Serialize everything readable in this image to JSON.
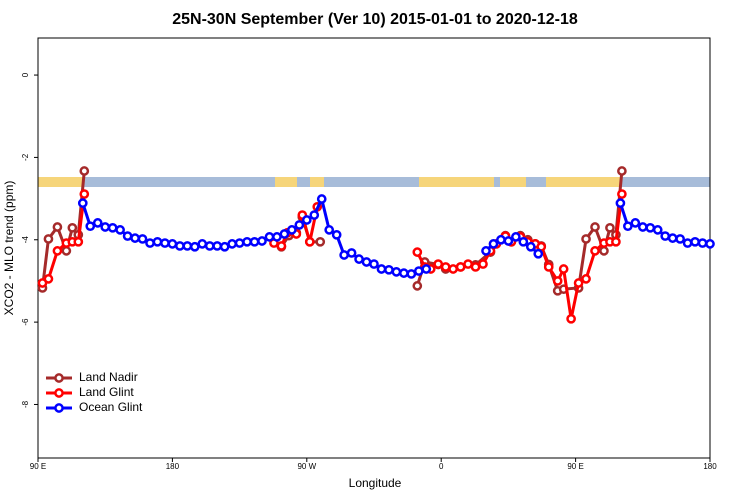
{
  "chart_data": {
    "type": "line",
    "title": "25N-30N September (Ver 10)   2015-01-01 to 2020-12-18",
    "x_label": "Longitude",
    "y_label": "XCO2 - MLO trend (ppm)",
    "xlim": [
      90,
      540
    ],
    "ylim": [
      -9.3,
      0.9
    ],
    "xticks": [
      {
        "value": 90,
        "label": "90 E"
      },
      180,
      {
        "value": 270,
        "label": "90 W"
      },
      {
        "value": 360,
        "label": "0"
      },
      {
        "value": 450,
        "label": "90 E"
      },
      {
        "value": 540,
        "label": "180"
      }
    ],
    "yticks": [
      0,
      -2,
      -4,
      -6,
      -8
    ],
    "legend": "bottomleft",
    "series": [
      {
        "name": "Land Nadir",
        "color": "#a52a2a",
        "x": [
          93,
          97,
          103,
          109,
          113,
          117,
          121,
          200,
          253,
          258,
          263,
          267,
          272,
          279,
          310,
          344,
          349,
          358,
          363,
          373,
          383,
          393,
          403,
          407,
          413,
          418,
          423,
          427,
          432,
          438,
          442,
          452,
          457,
          463,
          469,
          473,
          477,
          481
        ],
        "values": [
          -5.17,
          -3.98,
          -3.69,
          -4.27,
          -3.71,
          -3.88,
          -2.33,
          null,
          -4.17,
          -3.9,
          -3.83,
          -3.45,
          -4.05,
          -4.05,
          null,
          -5.12,
          -4.54,
          -4.6,
          -4.71,
          -4.66,
          -4.61,
          -4.3,
          -3.9,
          -4.05,
          -3.9,
          -4.0,
          -4.1,
          -4.15,
          -4.6,
          -5.24,
          -5.2,
          -5.17,
          -3.98,
          -3.69,
          -4.27,
          -3.71,
          -3.88,
          -2.33
        ]
      },
      {
        "name": "Land Glint",
        "color": "#ff0000",
        "x": [
          93,
          97,
          103,
          109,
          113,
          117,
          121,
          200,
          248,
          253,
          257,
          263,
          267,
          272,
          277,
          310,
          344,
          349,
          353,
          358,
          363,
          368,
          373,
          378,
          383,
          388,
          393,
          397,
          403,
          407,
          413,
          418,
          423,
          427,
          432,
          438,
          442,
          447,
          452,
          457,
          463,
          469,
          473,
          477,
          481
        ],
        "values": [
          -5.05,
          -4.95,
          -4.27,
          -4.08,
          -4.05,
          -4.05,
          -2.89,
          null,
          -4.08,
          -4.15,
          -3.83,
          -3.86,
          -3.4,
          -4.05,
          -3.2,
          null,
          -4.3,
          -4.66,
          -4.71,
          -4.59,
          -4.66,
          -4.71,
          -4.66,
          -4.59,
          -4.66,
          -4.59,
          -4.27,
          -4.1,
          -3.91,
          -4.05,
          -3.93,
          -4.05,
          -4.1,
          -4.17,
          -4.66,
          -5.0,
          -4.71,
          -5.92,
          -5.05,
          -4.95,
          -4.27,
          -4.08,
          -4.05,
          -4.05,
          -2.89
        ]
      },
      {
        "name": "Ocean Glint",
        "color": "#0000ff",
        "x": [
          120,
          125,
          130,
          135,
          140,
          145,
          150,
          155,
          160,
          165,
          170,
          175,
          180,
          185,
          190,
          195,
          200,
          205,
          210,
          215,
          220,
          225,
          230,
          235,
          240,
          245,
          250,
          255,
          260,
          265,
          270,
          275,
          280,
          285,
          290,
          295,
          300,
          305,
          310,
          315,
          320,
          325,
          330,
          335,
          340,
          345,
          350,
          355,
          360,
          365,
          370,
          375,
          380,
          385,
          390,
          395,
          400,
          405,
          410,
          415,
          420,
          425,
          430,
          435,
          440,
          445,
          450,
          455,
          460,
          465,
          470,
          475,
          480,
          485,
          490,
          495,
          500,
          505,
          510,
          515,
          520,
          525,
          530,
          535,
          540
        ],
        "values": [
          -3.11,
          -3.67,
          -3.59,
          -3.69,
          -3.71,
          -3.76,
          -3.91,
          -3.96,
          -3.98,
          -4.08,
          -4.05,
          -4.08,
          -4.1,
          -4.15,
          -4.15,
          -4.17,
          -4.1,
          -4.15,
          -4.15,
          -4.17,
          -4.1,
          -4.08,
          -4.05,
          -4.05,
          -4.03,
          -3.93,
          -3.93,
          -3.86,
          -3.76,
          -3.64,
          -3.52,
          -3.4,
          -3.01,
          -3.76,
          -3.88,
          -4.37,
          -4.32,
          -4.47,
          -4.54,
          -4.59,
          -4.71,
          -4.73,
          -4.78,
          -4.81,
          -4.83,
          -4.76,
          -4.71,
          null,
          null,
          null,
          null,
          null,
          null,
          null,
          -4.27,
          -4.1,
          -4.0,
          -4.03,
          -3.93,
          -4.05,
          -4.17,
          -4.34,
          null,
          null,
          null,
          null,
          null,
          null,
          null,
          null,
          null,
          null,
          -3.11,
          -3.67,
          -3.59,
          -3.69,
          -3.71,
          -3.76,
          -3.91,
          -3.96,
          -3.98,
          -4.08,
          -4.05,
          -4.08,
          -4.1
        ]
      }
    ]
  }
}
